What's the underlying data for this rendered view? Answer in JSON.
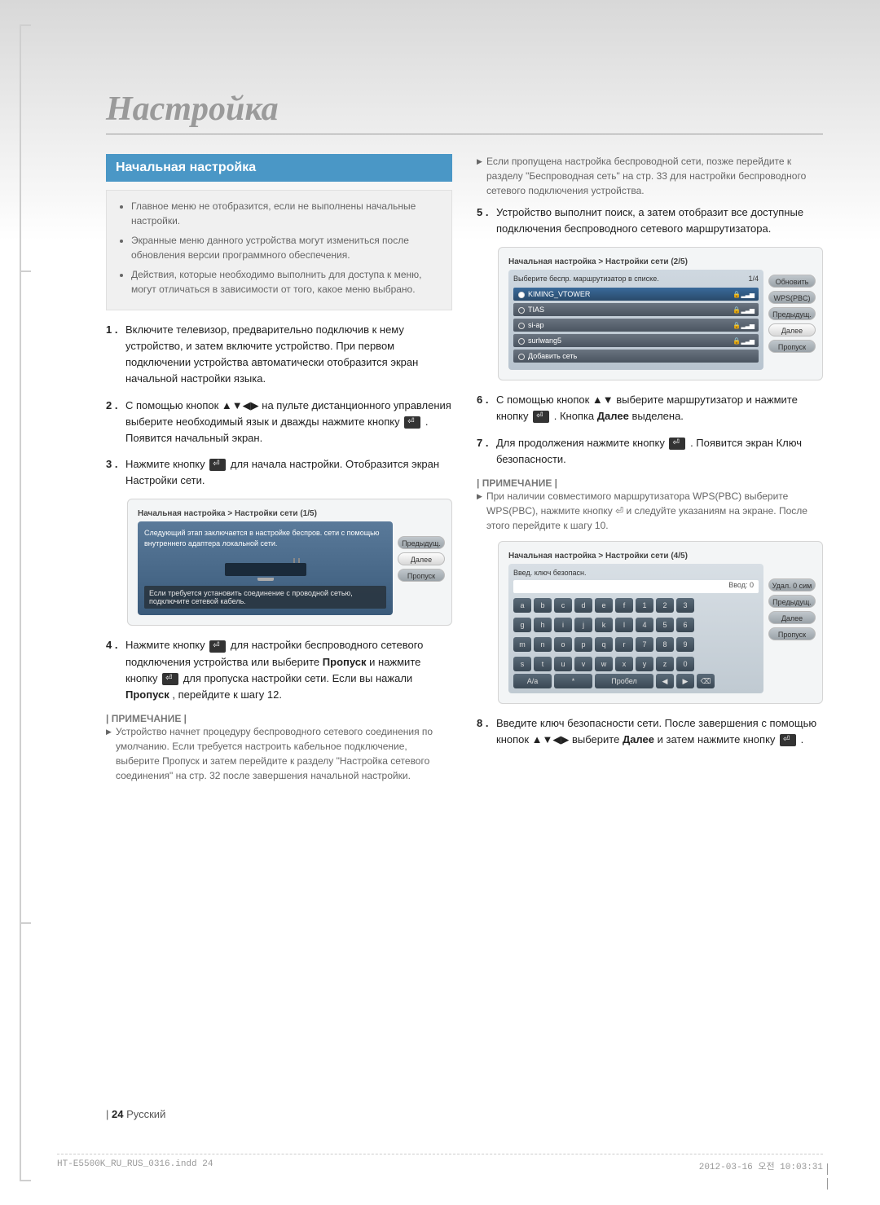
{
  "page": {
    "number": "24",
    "language": "Русский",
    "indesign_file": "HT-E5500K_RU_RUS_0316.indd   24",
    "indesign_date": "2012-03-16   오전 10:03:31"
  },
  "main_title": "Настройка",
  "section_header": "Начальная настройка",
  "info_bullets": [
    "Главное меню не отобразится, если не выполнены начальные настройки.",
    "Экранные меню данного устройства могут измениться после обновления версии программного обеспечения.",
    "Действия, которые необходимо выполнить для доступа к меню, могут отличаться в зависимости от того, какое меню выбрано."
  ],
  "steps_left": [
    {
      "n": "1 .",
      "text": "Включите телевизор, предварительно подключив к нему устройство, и затем включите устройство. При первом подключении устройства автоматически отобразится экран начальной настройки языка."
    },
    {
      "n": "2 .",
      "text": "С помощью кнопок ▲▼◀▶ на пульте дистанционного управления выберите необходимый язык и дважды нажмите кнопку ",
      "tail": ". Появится начальный экран."
    },
    {
      "n": "3 .",
      "text": "Нажмите кнопку ",
      "tail": " для начала настройки. Отобразится экран Настройки сети."
    }
  ],
  "ui1": {
    "title": "Начальная настройка > Настройки сети (1/5)",
    "desc": "Следующий этап заключается в настройке беспров. сети с помощью внутреннего адаптера локальной сети.",
    "foot": "Если требуется установить соединение с проводной сетью, подключите сетевой кабель.",
    "btns": [
      "Предыдущ.",
      "Далее",
      "Пропуск"
    ]
  },
  "step4": {
    "n": "4 .",
    "text_a": "Нажмите кнопку ",
    "text_b": " для настройки беспроводного сетевого подключения устройства или выберите ",
    "bold1": "Пропуск",
    "text_c": " и нажмите кнопку ",
    "text_d": " для пропуска настройки сети. Если вы нажали ",
    "bold2": "Пропуск",
    "text_e": ", перейдите к шагу 12."
  },
  "left_note_title": "| ПРИМЕЧАНИЕ |",
  "left_note": "Устройство начнет процедуру беспроводного сетевого соединения по умолчанию. Если требуется настроить кабельное подключение, выберите Пропуск и затем перейдите к разделу \"Настройка сетевого соединения\" на стр. 32 после завершения начальной настройки.",
  "right_top_note": "Если пропущена настройка беспроводной сети, позже перейдите к разделу \"Беспроводная сеть\" на стр. 33 для настройки беспроводного сетевого подключения устройства.",
  "step5": {
    "n": "5 .",
    "text": "Устройство выполнит поиск, а затем отобразит все доступные подключения беспроводного сетевого маршрутизатора."
  },
  "ui2": {
    "title": "Начальная настройка > Настройки сети (2/5)",
    "head": "Выберите беспр. маршрутизатор в списке.",
    "page": "1/4",
    "rows": [
      {
        "name": "KIMING_VTOWER",
        "sel": true
      },
      {
        "name": "TIAS",
        "sel": false
      },
      {
        "name": "si-ap",
        "sel": false
      },
      {
        "name": "surlwang5",
        "sel": false
      },
      {
        "name": "Добавить сеть",
        "sel": false
      }
    ],
    "btns": [
      "Обновить",
      "WPS(PBC)",
      "Предыдущ.",
      "Далее",
      "Пропуск"
    ]
  },
  "step6": {
    "n": "6 .",
    "text_a": "С помощью кнопок ▲▼ выберите маршрутизатор и нажмите кнопку ",
    "text_b": ". Кнопка ",
    "bold": "Далее",
    "text_c": " выделена."
  },
  "step7": {
    "n": "7 .",
    "text_a": "Для продолжения нажмите кнопку ",
    "text_b": ". Появится экран Ключ безопасности."
  },
  "right_note_title": "| ПРИМЕЧАНИЕ |",
  "right_note": "При наличии совместимого маршрутизатора WPS(PBC) выберите WPS(PBC), нажмите кнопку ⏎ и следуйте указаниям на экране. После этого перейдите к шагу 10.",
  "ui3": {
    "title": "Начальная настройка > Настройки сети (4/5)",
    "sec": "Введ. ключ безопасн.",
    "hint": "Ввод: 0",
    "keys_r1": [
      "a",
      "b",
      "c",
      "d",
      "e",
      "f",
      "1",
      "2",
      "3"
    ],
    "keys_r2": [
      "g",
      "h",
      "i",
      "j",
      "k",
      "l",
      "4",
      "5",
      "6"
    ],
    "keys_r3": [
      "m",
      "n",
      "o",
      "p",
      "q",
      "r",
      "7",
      "8",
      "9"
    ],
    "keys_r4": [
      "s",
      "t",
      "u",
      "v",
      "w",
      "x",
      "y",
      "z",
      "0"
    ],
    "meta": [
      "A/a",
      "*",
      "Пробел",
      "◀",
      "▶",
      "⌫"
    ],
    "btns": [
      "Удал. 0 сим",
      "Предыдущ.",
      "Далее",
      "Пропуск"
    ]
  },
  "step8": {
    "n": "8 .",
    "text_a": "Введите ключ безопасности сети. После завершения с помощью кнопок ▲▼◀▶ выберите ",
    "bold": "Далее",
    "text_b": " и затем нажмите кнопку ",
    "text_c": "."
  }
}
